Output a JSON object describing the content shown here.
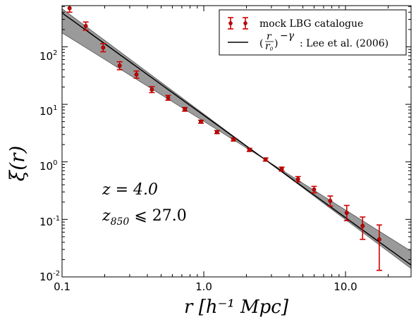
{
  "chart_data": {
    "type": "scatter",
    "xlabel": "r [h⁻¹ Mpc]",
    "ylabel": "ξ(r)",
    "xscale": "log",
    "yscale": "log",
    "xlim": [
      0.1,
      29
    ],
    "ylim": [
      0.01,
      520
    ],
    "x_ticks": [
      {
        "value": 0.1,
        "label": "0.1"
      },
      {
        "value": 1,
        "label": "1.0"
      },
      {
        "value": 10,
        "label": "10.0"
      }
    ],
    "y_ticks": [
      {
        "value": 0.01,
        "label": "10",
        "exp": "-2"
      },
      {
        "value": 0.1,
        "label": "10",
        "exp": "-1"
      },
      {
        "value": 1,
        "label": "10",
        "exp": "0"
      },
      {
        "value": 10,
        "label": "10",
        "exp": "1"
      },
      {
        "value": 100,
        "label": "10",
        "exp": "2"
      }
    ],
    "series": [
      {
        "name": "mock LBG catalogue",
        "color": "#cc0000",
        "points": [
          {
            "x": 0.113,
            "y": 470,
            "lo": 400,
            "hi": 550
          },
          {
            "x": 0.147,
            "y": 230,
            "lo": 195,
            "hi": 270
          },
          {
            "x": 0.195,
            "y": 97,
            "lo": 82,
            "hi": 114
          },
          {
            "x": 0.255,
            "y": 47,
            "lo": 40,
            "hi": 55
          },
          {
            "x": 0.335,
            "y": 33,
            "lo": 28.5,
            "hi": 38
          },
          {
            "x": 0.43,
            "y": 18,
            "lo": 16,
            "hi": 20.3
          },
          {
            "x": 0.56,
            "y": 13,
            "lo": 11.8,
            "hi": 14.3
          },
          {
            "x": 0.735,
            "y": 8.2,
            "lo": 7.6,
            "hi": 8.8
          },
          {
            "x": 0.955,
            "y": 5.0,
            "lo": 4.7,
            "hi": 5.3
          },
          {
            "x": 1.24,
            "y": 3.3,
            "lo": 3.1,
            "hi": 3.5
          },
          {
            "x": 1.62,
            "y": 2.45,
            "lo": 2.3,
            "hi": 2.6
          },
          {
            "x": 2.1,
            "y": 1.62,
            "lo": 1.52,
            "hi": 1.72
          },
          {
            "x": 2.73,
            "y": 1.1,
            "lo": 1.03,
            "hi": 1.17
          },
          {
            "x": 3.55,
            "y": 0.75,
            "lo": 0.69,
            "hi": 0.81
          },
          {
            "x": 4.62,
            "y": 0.5,
            "lo": 0.45,
            "hi": 0.555
          },
          {
            "x": 6.0,
            "y": 0.33,
            "lo": 0.29,
            "hi": 0.375
          },
          {
            "x": 7.8,
            "y": 0.21,
            "lo": 0.17,
            "hi": 0.255
          },
          {
            "x": 10.2,
            "y": 0.13,
            "lo": 0.095,
            "hi": 0.175
          },
          {
            "x": 13.2,
            "y": 0.077,
            "lo": 0.045,
            "hi": 0.11
          },
          {
            "x": 17.3,
            "y": 0.045,
            "lo": 0.013,
            "hi": 0.08
          }
        ]
      },
      {
        "name": "(r/r₀)^−γ : Lee et al. (2006)",
        "color": "#000000",
        "fit": {
          "r0": 2.85,
          "gamma": 1.78
        },
        "band": {
          "color": "#9a9a9a",
          "upper": [
            [
              0.1,
              460
            ],
            [
              2.7,
              1.1
            ],
            [
              29,
              0.014
            ]
          ],
          "lower": [
            [
              0.1,
              175
            ],
            [
              2.7,
              1.1
            ],
            [
              29,
              0.028
            ]
          ]
        }
      }
    ],
    "legend": {
      "position": "top-right",
      "entries": [
        {
          "text": "mock LBG catalogue"
        },
        {
          "formula_num": "r",
          "formula_den": "r",
          "formula_den_sub": "0",
          "formula_exp": "−γ",
          "text": ": Lee et al. (2006)"
        }
      ]
    },
    "annotations": {
      "z_line": "z = 4.0",
      "z850_line_base": "z",
      "z850_line_sub": "850",
      "z850_line_rest": " ⩽ 27.0"
    },
    "grid": false
  }
}
